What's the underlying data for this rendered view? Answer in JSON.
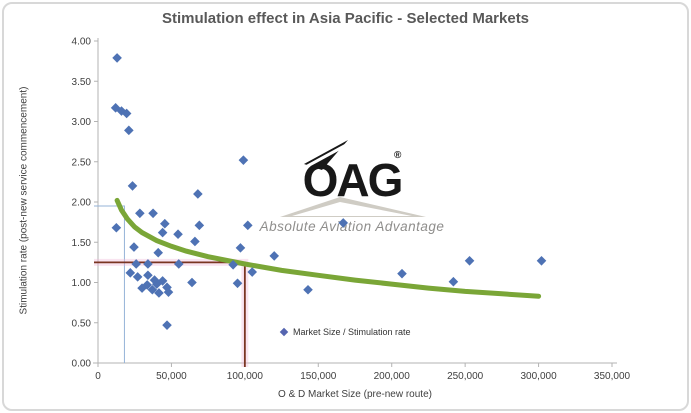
{
  "chart": {
    "title": "Stimulation effect in Asia Pacific - Selected Markets",
    "x_axis": {
      "label": "O & D Market Size (pre-new route)",
      "ticks": [
        "0",
        "50,000",
        "100,000",
        "150,000",
        "200,000",
        "250,000",
        "300,000",
        "350,000"
      ]
    },
    "y_axis": {
      "label": "Stimulation rate (post-new service commencement)",
      "ticks": [
        "0.00",
        "0.50",
        "1.00",
        "1.50",
        "2.00",
        "2.50",
        "3.00",
        "3.50",
        "4.00"
      ]
    },
    "legend": {
      "label": "Market Size / Stimulation rate",
      "marker": "diamond-icon"
    },
    "watermark": {
      "brand": "OAG",
      "registered": "®",
      "tagline": "Absolute Aviation Advantage"
    },
    "colors": {
      "point": "#4e72b4",
      "trend_curve": "#7aa637",
      "ref_blue": "#95b3d7",
      "ref_red": "#7a3522",
      "ref_red_glow": "#f0b8d8",
      "axis": "#b3b3b3",
      "tick_text": "#404040",
      "title_text": "#595959"
    }
  },
  "chart_data": {
    "type": "scatter",
    "title": "Stimulation effect in Asia Pacific - Selected Markets",
    "xlabel": "O & D Market Size (pre-new route)",
    "ylabel": "Stimulation rate (post-new service commencement)",
    "xlim": [
      0,
      350000
    ],
    "ylim": [
      0,
      4
    ],
    "x_tick_step": 50000,
    "y_tick_step": 0.5,
    "grid": false,
    "legend_position": "bottom-center",
    "series": [
      {
        "name": "Market Size / Stimulation rate",
        "points": [
          [
            13000,
            3.79
          ],
          [
            12000,
            3.17
          ],
          [
            16000,
            3.13
          ],
          [
            19500,
            3.1
          ],
          [
            21000,
            2.89
          ],
          [
            23500,
            2.2
          ],
          [
            99000,
            2.52
          ],
          [
            68000,
            2.1
          ],
          [
            12500,
            1.68
          ],
          [
            28500,
            1.86
          ],
          [
            37500,
            1.86
          ],
          [
            45500,
            1.73
          ],
          [
            44000,
            1.62
          ],
          [
            54500,
            1.6
          ],
          [
            69000,
            1.71
          ],
          [
            102000,
            1.71
          ],
          [
            167000,
            1.74
          ],
          [
            66000,
            1.51
          ],
          [
            24500,
            1.44
          ],
          [
            41000,
            1.37
          ],
          [
            97000,
            1.43
          ],
          [
            120000,
            1.33
          ],
          [
            26000,
            1.23
          ],
          [
            34000,
            1.23
          ],
          [
            55000,
            1.23
          ],
          [
            92000,
            1.22
          ],
          [
            105000,
            1.13
          ],
          [
            22000,
            1.12
          ],
          [
            27000,
            1.07
          ],
          [
            34000,
            1.09
          ],
          [
            38500,
            1.03
          ],
          [
            33500,
            0.97
          ],
          [
            40000,
            0.98
          ],
          [
            44000,
            1.02
          ],
          [
            47000,
            0.94
          ],
          [
            30000,
            0.93
          ],
          [
            37000,
            0.91
          ],
          [
            41500,
            0.87
          ],
          [
            48000,
            0.88
          ],
          [
            64000,
            1.0
          ],
          [
            95000,
            0.99
          ],
          [
            47000,
            0.47
          ],
          [
            143000,
            0.91
          ],
          [
            207000,
            1.11
          ],
          [
            242000,
            1.01
          ],
          [
            253000,
            1.27
          ],
          [
            302000,
            1.27
          ]
        ]
      }
    ],
    "trend_curve": {
      "points": [
        [
          13000,
          2.02
        ],
        [
          16000,
          1.9
        ],
        [
          20000,
          1.79
        ],
        [
          25000,
          1.69
        ],
        [
          30000,
          1.62
        ],
        [
          40000,
          1.52
        ],
        [
          50000,
          1.45
        ],
        [
          60000,
          1.39
        ],
        [
          75000,
          1.32
        ],
        [
          100000,
          1.23
        ],
        [
          125000,
          1.15
        ],
        [
          150000,
          1.09
        ],
        [
          175000,
          1.03
        ],
        [
          200000,
          0.98
        ],
        [
          225000,
          0.93
        ],
        [
          250000,
          0.89
        ],
        [
          275000,
          0.86
        ],
        [
          300000,
          0.83
        ]
      ]
    },
    "reference_lines": [
      {
        "name": "small-market-example",
        "x": 18000,
        "y": 1.95,
        "style": "thin-blue"
      },
      {
        "name": "market-100k-example",
        "x": 100000,
        "y": 1.25,
        "style": "dark-red-glow"
      }
    ]
  }
}
